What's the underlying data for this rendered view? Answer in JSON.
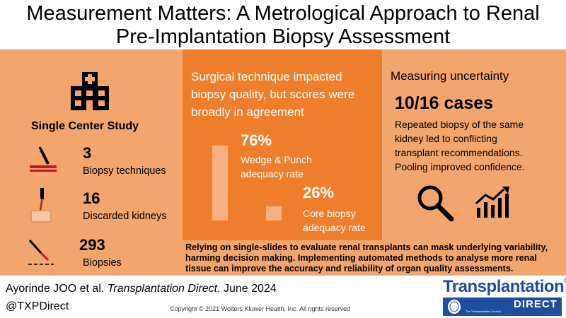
{
  "title": {
    "line1": "Measurement Matters: A Metrological Approach to Renal",
    "line2": "Pre-Implantation Biopsy Assessment"
  },
  "left": {
    "heading": "Single Center Study",
    "stats": [
      {
        "value": "3",
        "label": "Biopsy techniques"
      },
      {
        "value": "16",
        "label": "Discarded kidneys"
      },
      {
        "value": "293",
        "label": "Biopsies"
      }
    ]
  },
  "middle": {
    "text_lines": [
      "Surgical technique impacted",
      "biopsy quality, but scores were",
      "broadly in agreement"
    ],
    "stat1": {
      "value": "76%",
      "line1": "Wedge & Punch",
      "line2": "adequacy rate"
    },
    "stat2": {
      "value": "26%",
      "line1": "Core biopsy",
      "line2": "adequacy rate"
    },
    "bar_levels": [
      76,
      26
    ]
  },
  "right": {
    "heading": "Measuring uncertainty",
    "cases": "10/16 cases",
    "lines": [
      "Repeated biopsy of the same",
      "kidney led to conflicting",
      "transplant recommendations.",
      "Pooling improved confidence."
    ]
  },
  "bottom": {
    "lines": [
      "Relying on single-slides to evaluate renal transplants can mask underlying variability,",
      "harming decision making. Implementing automated methods to analyse more renal",
      "tissue can improve the accuracy and reliability of organ quality assessments."
    ]
  },
  "footer": {
    "authors": "Ayorinde JOO et al.",
    "journal": "Transplantation Direct",
    "date": ". June 2024",
    "handle": "@TXPDirect",
    "copyright": "Copyright © 2021  Wolters Kluwer Health, Inc. All rights reserved",
    "logo_top": "Transplantation",
    "logo_reg": "®",
    "logo_bottom": "DIRECT",
    "logo_sub": "The Transplantation Society"
  },
  "colors": {
    "light_orange": "#f2a56c",
    "dark_orange": "#ee7e2b",
    "logo_blue": "#1f4f9c"
  },
  "icons": [
    "hospital-icon",
    "scalpel-tray-icon",
    "needle-tissue-icon",
    "scalpel-icon",
    "magnifier-icon",
    "trend-chart-icon"
  ]
}
